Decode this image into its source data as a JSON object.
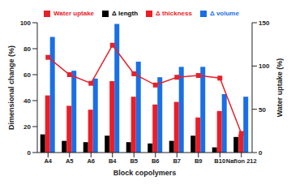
{
  "chart_data": {
    "type": "bar",
    "x_label": "Block copolymers",
    "y_label": "Dimensional change (%)",
    "y2_label": "Water uptake (%)",
    "categories": [
      "A4",
      "A5",
      "A6",
      "B4",
      "B5",
      "B6",
      "B7",
      "B9",
      "B10",
      "Nafion 212"
    ],
    "series": [
      {
        "name": "Δ length",
        "color": "#000000",
        "values": [
          14,
          9,
          8,
          13,
          8,
          7,
          9,
          13,
          4,
          12
        ]
      },
      {
        "name": "Δ thickness",
        "color": "#ee1c24",
        "values": [
          44,
          36,
          33,
          55,
          43,
          37,
          39,
          27,
          32,
          14
        ]
      },
      {
        "name": "Δ volume",
        "color": "#1a6fe6",
        "values": [
          89,
          63,
          57,
          99,
          70,
          58,
          66,
          66,
          45,
          43
        ]
      },
      {
        "name": "Water uptake",
        "type": "line",
        "axis": "y2",
        "color": "#e8202a",
        "marker": "square",
        "line_style": "solid",
        "values": [
          110,
          90,
          80,
          124,
          91,
          78,
          87,
          89,
          86,
          22
        ]
      }
    ],
    "ylim": [
      0,
      100
    ],
    "yticks": [
      0,
      20,
      40,
      60,
      80,
      100
    ],
    "y2lim": [
      0,
      150
    ],
    "y2ticks": [
      0,
      50,
      100,
      150
    ],
    "grid": false,
    "legend": "top"
  }
}
